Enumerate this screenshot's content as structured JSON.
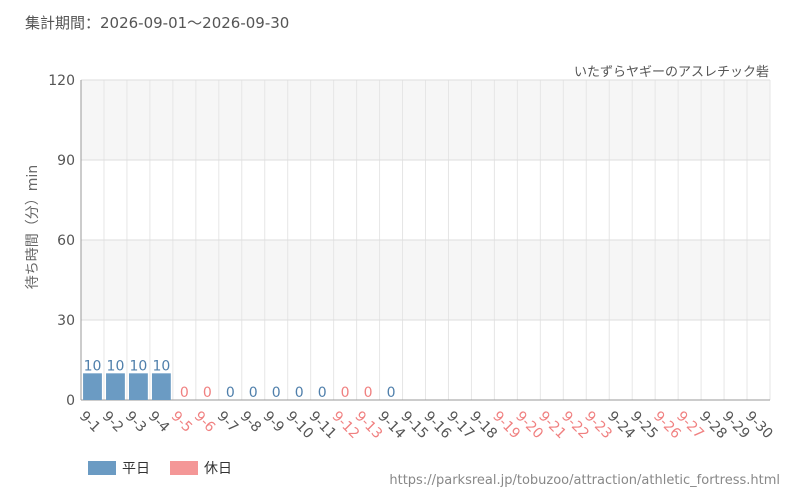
{
  "header": {
    "period_label": "集計期間：2026-09-01～2026-09-30"
  },
  "chart_data": {
    "type": "bar",
    "title": "いたずらヤギーのアスレチック砦",
    "ylabel": "待ち時間（分）min",
    "xlabel": "",
    "ylim": [
      0,
      120
    ],
    "yticks": [
      0,
      30,
      60,
      90,
      120
    ],
    "grid": true,
    "legend_position": "bottom-left",
    "categories": [
      "9-1",
      "9-2",
      "9-3",
      "9-4",
      "9-5",
      "9-6",
      "9-7",
      "9-8",
      "9-9",
      "9-10",
      "9-11",
      "9-12",
      "9-13",
      "9-14",
      "9-15",
      "9-16",
      "9-17",
      "9-18",
      "9-19",
      "9-20",
      "9-21",
      "9-22",
      "9-23",
      "9-24",
      "9-25",
      "9-26",
      "9-27",
      "9-28",
      "9-29",
      "9-30"
    ],
    "day_type": [
      "weekday",
      "weekday",
      "weekday",
      "weekday",
      "holiday",
      "holiday",
      "weekday",
      "weekday",
      "weekday",
      "weekday",
      "weekday",
      "holiday",
      "holiday",
      "weekday",
      "weekday",
      "weekday",
      "weekday",
      "weekday",
      "holiday",
      "holiday",
      "holiday",
      "holiday",
      "holiday",
      "weekday",
      "weekday",
      "holiday",
      "holiday",
      "weekday",
      "weekday",
      "weekday"
    ],
    "values": [
      10,
      10,
      10,
      10,
      0,
      0,
      0,
      0,
      0,
      0,
      0,
      0,
      0,
      0,
      null,
      null,
      null,
      null,
      null,
      null,
      null,
      null,
      null,
      null,
      null,
      null,
      null,
      null,
      null,
      null
    ],
    "value_labels": [
      "10",
      "10",
      "10",
      "10",
      "0",
      "0",
      "0",
      "0",
      "0",
      "0",
      "0",
      "0",
      "0",
      "0",
      "",
      "",
      "",
      "",
      "",
      "",
      "",
      "",
      "",
      "",
      "",
      "",
      "",
      "",
      "",
      ""
    ],
    "legend": [
      {
        "name": "平日",
        "key": "weekday",
        "color": "#6b9bc3"
      },
      {
        "name": "休日",
        "key": "holiday",
        "color": "#f49797"
      }
    ],
    "colors": {
      "weekday_bar": "#6b9bc3",
      "weekday_text": "#4f7fab",
      "holiday_text": "#f08080"
    }
  },
  "footer": {
    "source_url": "https://parksreal.jp/tobuzoo/attraction/athletic_fortress.html"
  }
}
